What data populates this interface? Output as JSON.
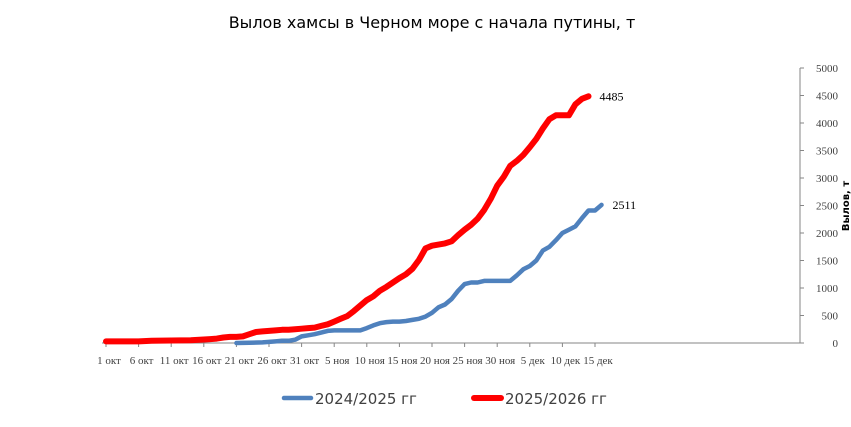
{
  "chart_data": {
    "type": "line",
    "title": "Вылов хамсы в Черном море с начала путины, т",
    "xlabel": "",
    "ylabel": "Вылов, т",
    "ylim": [
      0,
      5000
    ],
    "yticks": [
      0,
      500,
      1000,
      1500,
      2000,
      2500,
      3000,
      3500,
      4000,
      4500,
      5000
    ],
    "xticks": [
      "1 окт",
      "6 окт",
      "11 окт",
      "16 окт",
      "21 окт",
      "26 окт",
      "31 окт",
      "5 ноя",
      "10 ноя",
      "15 ноя",
      "20 ноя",
      "25 ноя",
      "30 ноя",
      "5 дек",
      "10 дек",
      "15 дек"
    ],
    "x_unit": "day since 1 окт",
    "y_axis_side": "right",
    "grid": false,
    "legend": "bottom",
    "series": [
      {
        "name": "2024/2025 гг",
        "color": "#4F81BD",
        "end_label": "2511",
        "points": [
          [
            20,
            0
          ],
          [
            22,
            5
          ],
          [
            24,
            10
          ],
          [
            25,
            20
          ],
          [
            26,
            30
          ],
          [
            27,
            40
          ],
          [
            28,
            40
          ],
          [
            29,
            60
          ],
          [
            30,
            120
          ],
          [
            31,
            140
          ],
          [
            32,
            160
          ],
          [
            33,
            190
          ],
          [
            34,
            220
          ],
          [
            35,
            230
          ],
          [
            36,
            230
          ],
          [
            37,
            230
          ],
          [
            38,
            230
          ],
          [
            39,
            230
          ],
          [
            40,
            270
          ],
          [
            41,
            320
          ],
          [
            42,
            360
          ],
          [
            43,
            380
          ],
          [
            44,
            390
          ],
          [
            45,
            390
          ],
          [
            46,
            400
          ],
          [
            47,
            420
          ],
          [
            48,
            440
          ],
          [
            49,
            480
          ],
          [
            50,
            550
          ],
          [
            51,
            650
          ],
          [
            52,
            700
          ],
          [
            53,
            800
          ],
          [
            54,
            950
          ],
          [
            55,
            1070
          ],
          [
            56,
            1100
          ],
          [
            57,
            1100
          ],
          [
            58,
            1130
          ],
          [
            59,
            1130
          ],
          [
            60,
            1130
          ],
          [
            61,
            1130
          ],
          [
            62,
            1130
          ],
          [
            63,
            1230
          ],
          [
            64,
            1340
          ],
          [
            65,
            1400
          ],
          [
            66,
            1500
          ],
          [
            67,
            1680
          ],
          [
            68,
            1750
          ],
          [
            69,
            1870
          ],
          [
            70,
            2000
          ],
          [
            71,
            2060
          ],
          [
            72,
            2120
          ],
          [
            73,
            2270
          ],
          [
            74,
            2410
          ],
          [
            75,
            2410
          ],
          [
            76,
            2511
          ]
        ]
      },
      {
        "name": "2025/2026 гг",
        "color": "#FF0000",
        "end_label": "4485",
        "points": [
          [
            0,
            30
          ],
          [
            5,
            30
          ],
          [
            7,
            40
          ],
          [
            10,
            45
          ],
          [
            13,
            50
          ],
          [
            16,
            70
          ],
          [
            17,
            80
          ],
          [
            18,
            100
          ],
          [
            19,
            110
          ],
          [
            20,
            110
          ],
          [
            21,
            120
          ],
          [
            22,
            160
          ],
          [
            23,
            200
          ],
          [
            24,
            210
          ],
          [
            25,
            220
          ],
          [
            26,
            230
          ],
          [
            27,
            240
          ],
          [
            28,
            240
          ],
          [
            29,
            250
          ],
          [
            30,
            260
          ],
          [
            31,
            270
          ],
          [
            32,
            280
          ],
          [
            33,
            310
          ],
          [
            34,
            340
          ],
          [
            35,
            390
          ],
          [
            36,
            440
          ],
          [
            37,
            490
          ],
          [
            38,
            580
          ],
          [
            39,
            680
          ],
          [
            40,
            780
          ],
          [
            41,
            850
          ],
          [
            42,
            950
          ],
          [
            43,
            1020
          ],
          [
            44,
            1100
          ],
          [
            45,
            1180
          ],
          [
            46,
            1250
          ],
          [
            47,
            1350
          ],
          [
            48,
            1510
          ],
          [
            49,
            1720
          ],
          [
            50,
            1770
          ],
          [
            51,
            1790
          ],
          [
            52,
            1810
          ],
          [
            53,
            1850
          ],
          [
            54,
            1960
          ],
          [
            55,
            2060
          ],
          [
            56,
            2150
          ],
          [
            57,
            2260
          ],
          [
            58,
            2420
          ],
          [
            59,
            2620
          ],
          [
            60,
            2860
          ],
          [
            61,
            3020
          ],
          [
            62,
            3220
          ],
          [
            63,
            3310
          ],
          [
            64,
            3420
          ],
          [
            65,
            3560
          ],
          [
            66,
            3710
          ],
          [
            67,
            3900
          ],
          [
            68,
            4070
          ],
          [
            69,
            4140
          ],
          [
            70,
            4140
          ],
          [
            71,
            4140
          ],
          [
            72,
            4340
          ],
          [
            73,
            4440
          ],
          [
            74,
            4485
          ]
        ]
      }
    ]
  }
}
